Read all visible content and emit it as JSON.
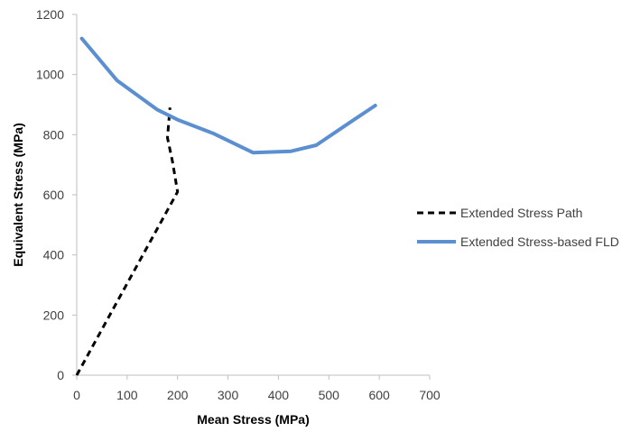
{
  "chart_data": {
    "type": "line",
    "title": "",
    "xlabel": "Mean Stress (MPa)",
    "ylabel": "Equivalent Stress (MPa)",
    "xlim": [
      0,
      700
    ],
    "ylim": [
      0,
      1200
    ],
    "xticks": [
      0,
      100,
      200,
      300,
      400,
      500,
      600,
      700
    ],
    "yticks": [
      0,
      200,
      400,
      600,
      800,
      1000,
      1200
    ],
    "grid": false,
    "legend_position": "right",
    "series": [
      {
        "name": "Extended Stress Path",
        "color": "#000000",
        "style": "dashed",
        "x": [
          0,
          200,
          190,
          180,
          185
        ],
        "y": [
          0,
          610,
          710,
          790,
          890
        ]
      },
      {
        "name": "Extended Stress-based FLD",
        "color": "#5B8FD0",
        "style": "solid",
        "x": [
          10,
          80,
          160,
          200,
          270,
          350,
          425,
          475,
          550,
          592
        ],
        "y": [
          1120,
          980,
          883,
          850,
          805,
          740,
          745,
          765,
          850,
          897
        ]
      }
    ]
  }
}
